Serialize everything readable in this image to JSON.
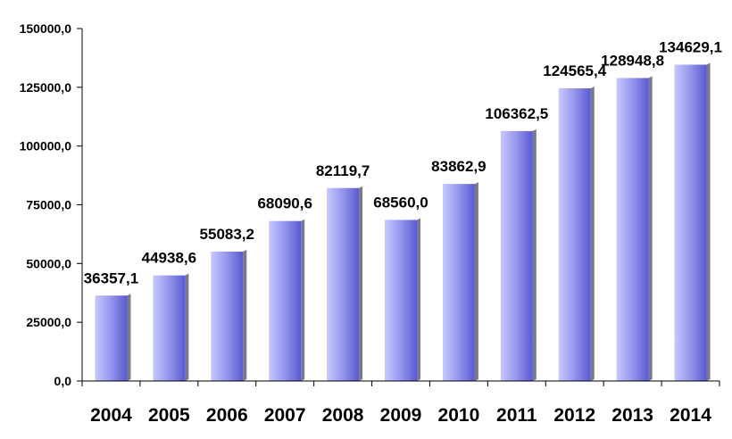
{
  "chart_data": {
    "type": "bar",
    "categories": [
      "2004",
      "2005",
      "2006",
      "2007",
      "2008",
      "2009",
      "2010",
      "2011",
      "2012",
      "2013",
      "2014"
    ],
    "values": [
      36357.1,
      44938.6,
      55083.2,
      68090.6,
      82119.7,
      68560.0,
      83862.9,
      106362.5,
      124565.4,
      128948.8,
      134629.1
    ],
    "data_labels": [
      "36357,1",
      "44938,6",
      "55083,2",
      "68090,6",
      "82119,7",
      "68560,0",
      "83862,9",
      "106362,5",
      "124565,4",
      "128948,8",
      "134629,1"
    ],
    "y_ticks": [
      0,
      25000,
      50000,
      75000,
      100000,
      125000,
      150000
    ],
    "y_tick_labels": [
      "0,0",
      "25000,0",
      "50000,0",
      "75000,0",
      "100000,0",
      "125000,0",
      "150000,0"
    ],
    "ylim": [
      0,
      150000
    ],
    "title": "",
    "xlabel": "",
    "ylabel": "",
    "grid": false,
    "legend": "none",
    "colors": {
      "bar_light": "#c8c8ff",
      "bar_mid": "#9a9af0",
      "bar_dark": "#5a5ad0",
      "bar_shadow": "#7a7a84",
      "axis": "#000000"
    }
  }
}
